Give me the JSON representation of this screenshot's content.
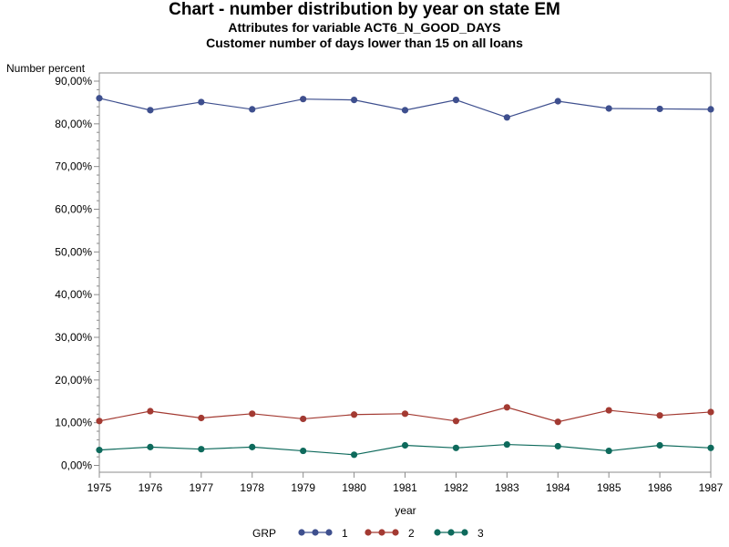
{
  "colors": {
    "series1": "#3e4f8e",
    "series2": "#a33a32",
    "series3": "#0e6a5c",
    "axis": "#8c8c8c"
  },
  "chart_data": {
    "type": "line",
    "title": "Chart - number distribution by year on state EM",
    "subtitle1": "Attributes for variable ACT6_N_GOOD_DAYS",
    "subtitle2": "Customer number of days lower than 15 on all loans",
    "xlabel": "year",
    "ylabel": "Number percent",
    "x": [
      1975,
      1976,
      1977,
      1978,
      1979,
      1980,
      1981,
      1982,
      1983,
      1984,
      1985,
      1986,
      1987
    ],
    "ylim": [
      0,
      90
    ],
    "yticks": [
      0,
      10,
      20,
      30,
      40,
      50,
      60,
      70,
      80,
      90
    ],
    "ytick_labels": [
      "0,00%",
      "10,00%",
      "20,00%",
      "30,00%",
      "40,00%",
      "50,00%",
      "60,00%",
      "70,00%",
      "80,00%",
      "90,00%"
    ],
    "grid": false,
    "legend": {
      "title": "GRP",
      "position": "bottom"
    },
    "series": [
      {
        "name": "1",
        "values": [
          86.0,
          83.2,
          85.1,
          83.4,
          85.8,
          85.6,
          83.2,
          85.6,
          81.5,
          85.3,
          83.6,
          83.5,
          83.4
        ]
      },
      {
        "name": "2",
        "values": [
          10.4,
          12.7,
          11.1,
          12.1,
          10.9,
          11.9,
          12.1,
          10.4,
          13.6,
          10.2,
          12.9,
          11.7,
          12.5
        ]
      },
      {
        "name": "3",
        "values": [
          3.6,
          4.3,
          3.8,
          4.3,
          3.4,
          2.5,
          4.7,
          4.1,
          4.9,
          4.5,
          3.4,
          4.7,
          4.1
        ]
      }
    ]
  }
}
